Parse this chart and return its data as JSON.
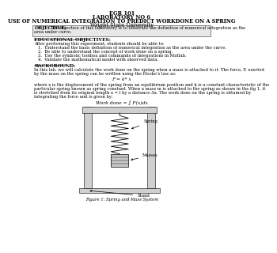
{
  "title_line1": "EGR 101",
  "title_line2": "LABORATORY NO 6",
  "title_line3": "USE OF NUMERICAL INTEGRATION TO PREDICT WORKDONE ON A SPRING",
  "title_line4": "Wright State University",
  "objective_label": "OBJECTIVE:",
  "objective_text1": "The objective of this laboratory is to illustrate the definition of numerical integration as the",
  "objective_text2": "area under curve.",
  "edu_obj_label": "EDUCATIONAL OBJECTIVES:",
  "edu_obj_intro": "After performing this experiment, students should be able to:",
  "edu_obj_items": [
    "1.  Understand the basic definition of numerical integration as the area under the curve.",
    "2.  Be able to understand the concept of work done on a spring.",
    "3.  Use the symbolic toolbox and commands of integrations in Matlab.",
    "4.  Validate the mathematical model with observed data."
  ],
  "background_label": "BACKGROUND:",
  "bg_text1": "In this lab, we will calculate the work done on the spring when a mass is attached to it. The force, F, exerted",
  "bg_text2": "by the mass on the spring can be written using the Hooke’s law as:",
  "equation1": "F = k* x",
  "bg_text3": "where x is the displacement of the spring from an equilibrium position and k is a constant characteristic of the",
  "bg_text4": "particular spring known as spring constant. When a mass m is attached to the spring as shown in the fig 1, it",
  "bg_text5": "is stretched from its original length x = l by a distance Δx. The work done on the spring is obtained by",
  "bg_text6": "integrating the force and is given by:",
  "equation2": "Work done = ∫ F(x)dx",
  "figure_caption": "Figure 1: Spring and Mass System",
  "bg_color": "#ffffff",
  "text_color": "#000000",
  "title_fontsize": 4.8,
  "body_fontsize": 3.8,
  "label_fontsize": 4.2
}
